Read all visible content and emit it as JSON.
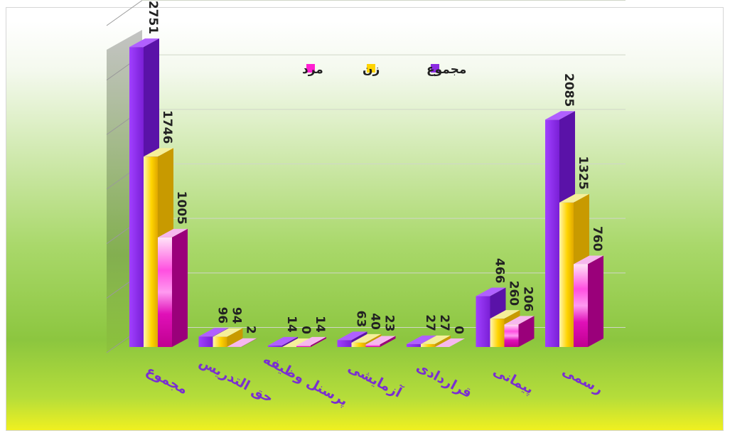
{
  "chart_data": {
    "type": "bar",
    "categories": [
      "مجموع",
      "حق التدریس",
      "پرسنل وظیفه",
      "آزمایشی",
      "قراردادی",
      "پیمانی",
      "رسمی"
    ],
    "series": [
      {
        "name": "مجموع",
        "values": [
          2751,
          96,
          14,
          63,
          27,
          466,
          2085
        ],
        "color": "#8b2be2"
      },
      {
        "name": "زن",
        "values": [
          1746,
          94,
          0,
          40,
          27,
          260,
          1325
        ],
        "color": "#ffd400"
      },
      {
        "name": "مرد",
        "values": [
          1005,
          2,
          14,
          23,
          0,
          206,
          760
        ],
        "color": "#ff1fd1"
      }
    ],
    "ylim": [
      0,
      3000
    ],
    "grid": true,
    "legend_position": "top-center",
    "background_colors": [
      "#ffffff",
      "#8cc63f",
      "#f0f020"
    ]
  }
}
